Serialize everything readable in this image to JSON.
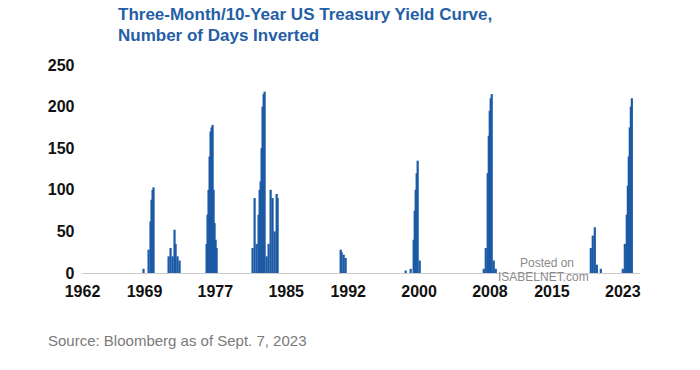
{
  "chart_data": {
    "type": "bar",
    "title": "Three-Month/10-Year US Treasury Yield Curve,",
    "subtitle": "Number of Days Inverted",
    "caption": "Source: Bloomberg as of Sept. 7, 2023",
    "annotations": [
      "Posted on",
      "ISABELNET.com"
    ],
    "x": [
      1968.89,
      1969.46,
      1969.68,
      1969.79,
      1969.91,
      1970.02,
      1971.72,
      1971.94,
      1972.17,
      1972.39,
      1972.51,
      1972.73,
      1972.96,
      1976.01,
      1976.12,
      1976.23,
      1976.35,
      1976.46,
      1976.57,
      1976.69,
      1976.8,
      1976.91,
      1977.03,
      1977.14,
      1981.2,
      1981.43,
      1981.66,
      1981.88,
      1982.0,
      1982.11,
      1982.22,
      1982.33,
      1982.45,
      1982.56,
      1982.79,
      1983.01,
      1983.24,
      1983.46,
      1983.69,
      1983.92,
      1984.03,
      1991.15,
      1991.26,
      1991.49,
      1991.71,
      1998.49,
      1999.05,
      1999.39,
      1999.51,
      1999.62,
      1999.73,
      1999.84,
      2000.07,
      2007.3,
      2007.53,
      2007.75,
      2007.87,
      2007.98,
      2008.09,
      2008.2,
      2008.43,
      2008.66,
      2019.39,
      2019.61,
      2019.84,
      2020.07,
      2020.52,
      2023.0,
      2023.23,
      2023.45,
      2023.57,
      2023.68,
      2023.79,
      2023.91,
      2024.02
    ],
    "values": [
      5,
      28,
      62,
      88,
      100,
      103,
      20,
      30,
      20,
      52,
      35,
      20,
      15,
      35,
      70,
      100,
      140,
      170,
      175,
      178,
      100,
      60,
      40,
      30,
      30,
      90,
      35,
      70,
      100,
      110,
      150,
      200,
      215,
      218,
      20,
      35,
      100,
      90,
      50,
      95,
      90,
      28,
      25,
      22,
      18,
      3,
      5,
      40,
      75,
      100,
      120,
      135,
      15,
      5,
      30,
      120,
      165,
      195,
      210,
      215,
      15,
      5,
      30,
      45,
      55,
      10,
      5,
      5,
      35,
      70,
      105,
      140,
      175,
      200,
      210
    ],
    "color": "#1c5aa6",
    "xlim": [
      1962,
      2025
    ],
    "xticks": [
      1962,
      1969,
      1977,
      1985,
      1992,
      2000,
      2008,
      2015,
      2023
    ],
    "ylim": [
      0,
      250
    ],
    "yticks": [
      0,
      50,
      100,
      150,
      200,
      250
    ],
    "grid": false
  }
}
